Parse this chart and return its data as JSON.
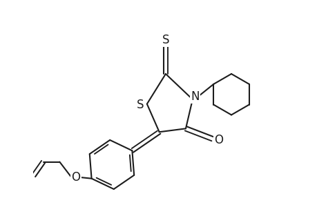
{
  "background": "#ffffff",
  "line_color": "#1c1c1c",
  "lw": 1.5,
  "figsize": [
    4.6,
    3.0
  ],
  "dpi": 100,
  "xlim": [
    -0.05,
    1.05
  ],
  "ylim": [
    0.08,
    0.98
  ]
}
